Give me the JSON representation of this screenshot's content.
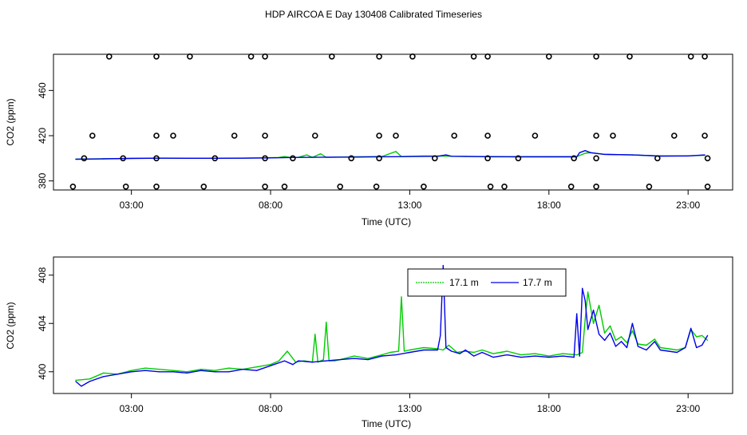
{
  "title": "HDP AIRCOA E  Day 130408  Calibrated Timeseries",
  "colors": {
    "green": "#00cc00",
    "blue": "#0000ee",
    "axis": "#000000"
  },
  "chart_data": [
    {
      "type": "line",
      "xlabel": "Time (UTC)",
      "ylabel": "CO2 (ppm)",
      "xticks": [
        "03:00",
        "08:00",
        "13:00",
        "18:00",
        "23:00"
      ],
      "xtick_values": [
        3,
        8,
        13,
        18,
        23
      ],
      "yticks": [
        "380",
        "420",
        "460"
      ],
      "ytick_values": [
        380,
        420,
        460
      ],
      "xlim": [
        0.2,
        24.6
      ],
      "ylim": [
        372,
        492
      ],
      "grid": false,
      "series": [
        {
          "line": "green",
          "x": [
            1.0,
            2.0,
            3.0,
            4.0,
            5.0,
            6.0,
            7.0,
            8.0,
            8.3,
            8.5,
            8.7,
            9.0,
            9.3,
            9.5,
            9.8,
            10.0,
            10.3,
            11.0,
            12.0,
            12.5,
            12.7,
            12.9,
            13.5,
            14.0,
            15.0,
            16.0,
            17.0,
            18.0,
            19.0,
            19.3,
            19.5,
            20.0,
            21.0,
            22.0,
            23.0,
            23.6
          ],
          "y": [
            399.3,
            399.6,
            400.0,
            400.2,
            400.1,
            400.1,
            400.2,
            400.5,
            400.7,
            401.6,
            400.7,
            400.9,
            403.0,
            400.8,
            404.0,
            400.8,
            401.0,
            401.3,
            401.6,
            406.0,
            401.6,
            401.7,
            402.0,
            402.1,
            401.6,
            401.6,
            401.5,
            401.5,
            401.5,
            404.5,
            405.0,
            403.5,
            403.0,
            402.0,
            402.2,
            402.6
          ]
        },
        {
          "line": "blue",
          "x": [
            1.0,
            2.0,
            3.0,
            4.0,
            5.0,
            6.0,
            7.0,
            8.0,
            9.0,
            10.0,
            11.0,
            12.0,
            13.0,
            14.0,
            14.3,
            14.5,
            15.0,
            16.0,
            17.0,
            18.0,
            19.0,
            19.1,
            19.3,
            19.5,
            20.0,
            21.0,
            22.0,
            23.0,
            23.6
          ],
          "y": [
            399.2,
            399.5,
            399.9,
            400.1,
            400.0,
            400.0,
            400.1,
            400.4,
            400.8,
            401.0,
            401.1,
            401.4,
            401.6,
            401.8,
            403.0,
            401.8,
            401.7,
            401.4,
            401.3,
            401.3,
            401.3,
            405.0,
            406.8,
            405.0,
            403.5,
            403.0,
            402.0,
            402.1,
            403.0
          ]
        }
      ],
      "symbols": [
        {
          "row": "high",
          "y": 490,
          "x": [
            2.2,
            3.9,
            5.1,
            7.3,
            7.8,
            10.2,
            11.9,
            13.1,
            15.3,
            15.8,
            18.0,
            19.7,
            20.9,
            23.1,
            23.6
          ]
        },
        {
          "row": "mid-high",
          "y": 420,
          "x": [
            1.6,
            3.9,
            4.5,
            6.7,
            7.8,
            9.6,
            11.9,
            12.5,
            14.6,
            15.8,
            17.5,
            19.7,
            20.3,
            22.5,
            23.6
          ]
        },
        {
          "row": "mid",
          "y": 400,
          "x": [
            1.3,
            2.7,
            3.9,
            6.0,
            7.8,
            8.8,
            10.9,
            11.9,
            13.9,
            15.8,
            16.9,
            18.9,
            19.7,
            21.9,
            23.7
          ]
        },
        {
          "row": "low",
          "y": 375,
          "x": [
            0.9,
            2.8,
            3.9,
            5.6,
            7.8,
            8.5,
            10.5,
            11.8,
            13.5,
            15.9,
            16.4,
            18.8,
            19.7,
            21.6,
            23.7
          ]
        }
      ]
    },
    {
      "type": "line",
      "xlabel": "Time (UTC)",
      "ylabel": "CO2 (ppm)",
      "xticks": [
        "03:00",
        "08:00",
        "13:00",
        "18:00",
        "23:00"
      ],
      "xtick_values": [
        3,
        8,
        13,
        18,
        23
      ],
      "yticks": [
        "400",
        "404",
        "408"
      ],
      "ytick_values": [
        400,
        404,
        408
      ],
      "xlim": [
        0.2,
        24.6
      ],
      "ylim": [
        398.2,
        409.5
      ],
      "grid": false,
      "legend": {
        "placement": "top-center",
        "entries": [
          {
            "label": "17.1 m",
            "line": "green"
          },
          {
            "label": "17.7 m",
            "line": "blue"
          }
        ]
      },
      "series": [
        {
          "name": "17.1 m",
          "line": "green",
          "x": [
            1.0,
            1.5,
            2.0,
            2.5,
            3.0,
            3.5,
            4.0,
            4.5,
            5.0,
            5.5,
            6.0,
            6.5,
            7.0,
            7.5,
            8.0,
            8.3,
            8.6,
            8.9,
            9.2,
            9.5,
            9.6,
            9.7,
            9.9,
            10.0,
            10.1,
            10.3,
            10.5,
            11.0,
            11.5,
            12.0,
            12.3,
            12.6,
            12.7,
            12.8,
            13.0,
            13.5,
            14.0,
            14.2,
            14.4,
            14.7,
            15.0,
            15.3,
            15.6,
            16.0,
            16.5,
            17.0,
            17.5,
            18.0,
            18.5,
            19.0,
            19.1,
            19.2,
            19.3,
            19.4,
            19.6,
            19.8,
            20.0,
            20.2,
            20.4,
            20.6,
            20.8,
            21.0,
            21.2,
            21.5,
            21.8,
            22.0,
            22.3,
            22.6,
            22.9,
            23.1,
            23.3,
            23.5,
            23.7
          ],
          "y": [
            399.3,
            399.4,
            399.9,
            399.8,
            400.1,
            400.3,
            400.2,
            400.1,
            400.0,
            400.2,
            400.1,
            400.3,
            400.2,
            400.4,
            400.6,
            400.9,
            401.7,
            400.8,
            400.9,
            400.8,
            403.1,
            400.8,
            401.0,
            404.1,
            400.9,
            400.9,
            401.0,
            401.3,
            401.1,
            401.4,
            401.6,
            401.7,
            406.2,
            401.7,
            401.8,
            402.0,
            401.9,
            401.8,
            402.2,
            401.6,
            401.7,
            401.6,
            401.8,
            401.5,
            401.7,
            401.4,
            401.5,
            401.3,
            401.5,
            401.4,
            401.5,
            401.6,
            404.3,
            406.6,
            404.0,
            405.5,
            403.2,
            403.8,
            402.6,
            402.9,
            402.4,
            403.4,
            402.3,
            402.2,
            402.7,
            402.0,
            401.9,
            401.8,
            402.0,
            403.5,
            402.9,
            403.0,
            402.6
          ]
        },
        {
          "name": "17.7 m",
          "line": "blue",
          "x": [
            1.0,
            1.2,
            1.5,
            2.0,
            2.5,
            3.0,
            3.5,
            4.0,
            4.5,
            5.0,
            5.5,
            6.0,
            6.5,
            7.0,
            7.5,
            8.0,
            8.5,
            8.8,
            9.0,
            9.5,
            10.0,
            10.5,
            11.0,
            11.5,
            12.0,
            12.5,
            13.0,
            13.5,
            14.0,
            14.1,
            14.2,
            14.3,
            14.5,
            14.8,
            15.0,
            15.3,
            15.6,
            16.0,
            16.5,
            17.0,
            17.5,
            18.0,
            18.5,
            18.9,
            19.0,
            19.1,
            19.2,
            19.3,
            19.4,
            19.6,
            19.8,
            20.0,
            20.2,
            20.4,
            20.6,
            20.8,
            21.0,
            21.2,
            21.5,
            21.8,
            22.0,
            22.3,
            22.6,
            22.9,
            23.1,
            23.3,
            23.5,
            23.7
          ],
          "y": [
            399.2,
            398.8,
            399.2,
            399.6,
            399.8,
            400.0,
            400.1,
            400.0,
            400.0,
            399.9,
            400.1,
            400.0,
            400.0,
            400.2,
            400.1,
            400.5,
            400.9,
            400.6,
            400.9,
            400.8,
            400.9,
            401.0,
            401.1,
            401.0,
            401.3,
            401.4,
            401.6,
            401.8,
            401.8,
            403.0,
            408.8,
            402.0,
            401.7,
            401.5,
            401.8,
            401.3,
            401.6,
            401.2,
            401.4,
            401.2,
            401.3,
            401.2,
            401.3,
            401.2,
            404.8,
            401.3,
            406.9,
            405.9,
            403.5,
            405.1,
            403.1,
            402.6,
            403.2,
            402.1,
            402.5,
            402.0,
            404.0,
            402.1,
            401.8,
            402.5,
            401.8,
            401.7,
            401.6,
            402.0,
            403.6,
            402.0,
            402.2,
            403.0
          ]
        }
      ]
    }
  ]
}
